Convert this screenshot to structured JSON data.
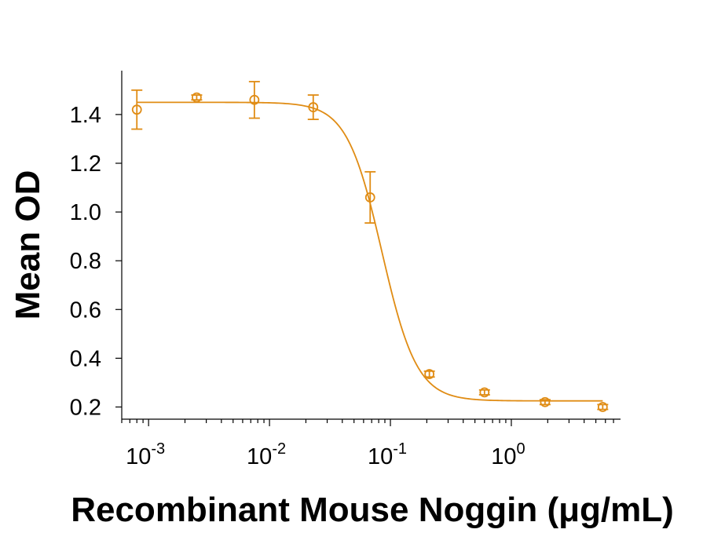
{
  "chart_data": {
    "type": "scatter",
    "title": "",
    "xlabel": "Recombinant Mouse Noggin (μg/mL)",
    "ylabel": "Mean OD",
    "x_scale": "log",
    "xlim": [
      0.0006,
      8
    ],
    "ylim": [
      0.15,
      1.58
    ],
    "grid": false,
    "legend": "none",
    "color": "#E08C14",
    "y_ticks": [
      {
        "value": 0.2,
        "label": "0.2"
      },
      {
        "value": 0.4,
        "label": "0.4"
      },
      {
        "value": 0.6,
        "label": "0.6"
      },
      {
        "value": 0.8,
        "label": "0.8"
      },
      {
        "value": 1.0,
        "label": "1.0"
      },
      {
        "value": 1.2,
        "label": "1.2"
      },
      {
        "value": 1.4,
        "label": "1.4"
      }
    ],
    "x_ticks": [
      {
        "value": 0.001,
        "base": "10",
        "exp": "-3"
      },
      {
        "value": 0.01,
        "base": "10",
        "exp": "-2"
      },
      {
        "value": 0.1,
        "base": "10",
        "exp": "-1"
      },
      {
        "value": 1,
        "base": "10",
        "exp": "0"
      }
    ],
    "series": [
      {
        "points": [
          {
            "x": 0.0008,
            "y": 1.42,
            "err": 0.08
          },
          {
            "x": 0.0025,
            "y": 1.47,
            "err": 0.01
          },
          {
            "x": 0.0075,
            "y": 1.46,
            "err": 0.075
          },
          {
            "x": 0.023,
            "y": 1.43,
            "err": 0.05
          },
          {
            "x": 0.068,
            "y": 1.06,
            "err": 0.105
          },
          {
            "x": 0.21,
            "y": 0.335,
            "err": 0.012
          },
          {
            "x": 0.6,
            "y": 0.26,
            "err": 0.01
          },
          {
            "x": 1.9,
            "y": 0.22,
            "err": 0.01
          },
          {
            "x": 5.7,
            "y": 0.2,
            "err": 0.01
          }
        ]
      }
    ],
    "fit_curve": {
      "model": "4PL",
      "top": 1.45,
      "bottom": 0.225,
      "ec50": 0.085,
      "hill": 3.0
    }
  }
}
